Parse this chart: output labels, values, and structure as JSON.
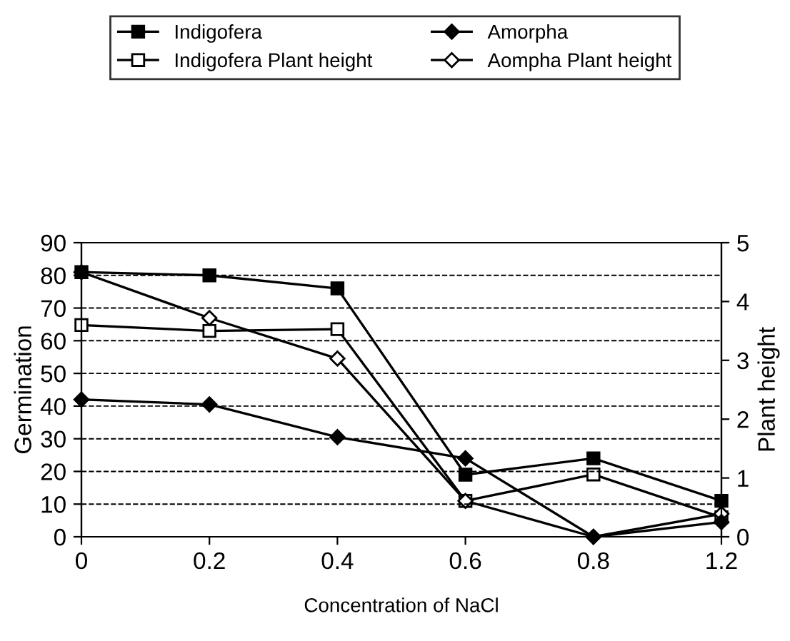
{
  "chart_data": {
    "type": "line",
    "xlabel": "Concentration of NaCl",
    "ylabel": "Germination",
    "y2label": "Plant height",
    "categories": [
      "0",
      "0.2",
      "0.4",
      "0.6",
      "0.8",
      "1.2"
    ],
    "series": [
      {
        "name": "Indigofera",
        "color": "#000000",
        "marker": "square",
        "values": [
          81,
          80,
          76,
          19,
          24,
          11
        ]
      },
      {
        "name": "Amorpha",
        "color": "#000000",
        "marker": "diamond",
        "values": [
          42,
          40.5,
          30.5,
          24,
          0,
          4.5
        ]
      },
      {
        "name": "Indigofera Plant height",
        "color": "#000000",
        "marker": "square",
        "axis": "y2",
        "values": [
          3.6,
          3.5,
          3.53,
          0.61,
          1.06,
          0.33
        ]
      },
      {
        "name": "Aompha Plant height",
        "color": "#000000",
        "marker": "diamond",
        "axis": "y2",
        "values": [
          4.5,
          3.72,
          3.03,
          0.61,
          0,
          0.39
        ]
      }
    ],
    "ylim": [
      0,
      90
    ],
    "yticks": [
      0,
      10,
      20,
      30,
      40,
      50,
      60,
      70,
      80,
      90
    ],
    "y2lim": [
      0,
      5
    ],
    "y2ticks": [
      0,
      1,
      2,
      3,
      4,
      5
    ],
    "grid": "y",
    "legend": "top",
    "line_style": "solid"
  }
}
